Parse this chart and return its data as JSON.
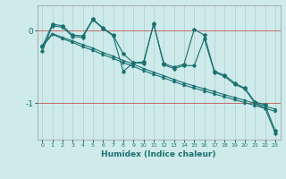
{
  "xlabel": "Humidex (Indice chaleur)",
  "bg_color": "#ceeaea",
  "line_color": "#1a7070",
  "grid_color": "#aed0d0",
  "xlim": [
    -0.5,
    23.5
  ],
  "ylim": [
    -1.5,
    0.35
  ],
  "yticks": [
    0,
    -1
  ],
  "xticks": [
    0,
    1,
    2,
    3,
    4,
    5,
    6,
    7,
    8,
    9,
    10,
    11,
    12,
    13,
    14,
    15,
    16,
    17,
    18,
    19,
    20,
    21,
    22,
    23
  ],
  "s1": [
    -0.22,
    0.09,
    0.07,
    -0.06,
    -0.07,
    0.16,
    0.04,
    -0.06,
    -0.32,
    -0.44,
    -0.43,
    0.09,
    -0.45,
    -0.5,
    -0.46,
    0.02,
    -0.06,
    -0.56,
    -0.61,
    -0.72,
    -0.79,
    -0.98,
    -1.02,
    -1.38
  ],
  "s2": [
    -0.28,
    0.07,
    0.05,
    -0.08,
    -0.09,
    0.15,
    0.03,
    -0.07,
    -0.56,
    -0.44,
    -0.45,
    0.1,
    -0.47,
    -0.52,
    -0.48,
    -0.48,
    -0.11,
    -0.57,
    -0.63,
    -0.74,
    -0.8,
    -1.0,
    -1.07,
    -1.41
  ],
  "s3": [
    -0.22,
    -0.05,
    -0.11,
    -0.16,
    -0.22,
    -0.27,
    -0.33,
    -0.38,
    -0.44,
    -0.49,
    -0.55,
    -0.6,
    -0.65,
    -0.7,
    -0.75,
    -0.79,
    -0.83,
    -0.87,
    -0.91,
    -0.95,
    -0.99,
    -1.03,
    -1.07,
    -1.11
  ],
  "s4": [
    -0.2,
    -0.04,
    -0.09,
    -0.14,
    -0.19,
    -0.24,
    -0.3,
    -0.35,
    -0.41,
    -0.46,
    -0.52,
    -0.57,
    -0.62,
    -0.67,
    -0.72,
    -0.76,
    -0.8,
    -0.84,
    -0.88,
    -0.92,
    -0.96,
    -1.0,
    -1.04,
    -1.08
  ]
}
